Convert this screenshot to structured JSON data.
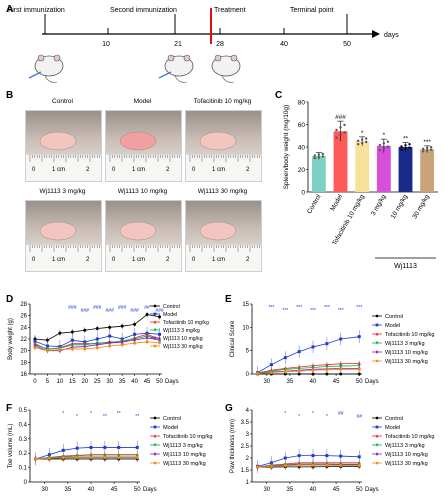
{
  "panel_letters": {
    "a": "A",
    "b": "B",
    "c": "C",
    "d": "D",
    "e": "E",
    "f": "F",
    "g": "G"
  },
  "timeline": {
    "labels": [
      "First immunization",
      "Second immunization",
      "Treatment",
      "Terminal point"
    ],
    "ticks": [
      "10",
      "21",
      "28",
      "40",
      "50"
    ],
    "unit": "days"
  },
  "photos": {
    "titles": [
      "Control",
      "Model",
      "Tofacitinib  10 mg/kg",
      "Wj1113  3 mg/kg",
      "Wj1113  10 mg/kg",
      "Wj1113  30 mg/kg"
    ],
    "ruler_text": [
      "0",
      "1 cm",
      "2"
    ]
  },
  "legend_labels": [
    "Control",
    "Model",
    "Tofacitinib 10 mg/kg",
    "Wj1113 3 mg/kg",
    "Wj1113 10 mg/kg",
    "Wj1113 30 mg/kg"
  ],
  "legend_labels_d": [
    "Control",
    "Model",
    "Tofacitinib 10 mg/kg",
    "Wj1113 3 mg/kg",
    "Wj1113 10 mg/kg",
    "Wj1113 30 mg/kg"
  ],
  "colors": {
    "Control": "#000000",
    "Model": "#1f3bd4",
    "Tofacitinib": "#e8232b",
    "Wj1113_3": "#13a843",
    "Wj1113_10": "#8a1fb8",
    "Wj1113_30": "#f08a1a"
  },
  "chart_data": [
    {
      "id": "C",
      "type": "bar",
      "ylabel": "Spleen/body weight (mg/10g)",
      "categories": [
        "Control",
        "Model",
        "Tofacitinib 10 mg/kg",
        "3 mg/kg",
        "10 mg/kg",
        "30 mg/kg"
      ],
      "group_label": "Wj1113",
      "values": [
        32,
        54,
        45,
        41,
        40,
        38
      ],
      "errors": [
        3,
        9,
        4,
        6,
        4,
        3
      ],
      "significance": [
        "",
        "###",
        "*",
        "*",
        "**",
        "***"
      ],
      "bar_colors": [
        "#7ed1c2",
        "#ff5a5a",
        "#f7e19b",
        "#d84ed8",
        "#1a2a8a",
        "#c9a37a"
      ],
      "yticks": [
        0,
        20,
        40,
        60,
        80
      ],
      "ylim": [
        0,
        80
      ]
    },
    {
      "id": "D",
      "type": "line",
      "ylabel": "Body weight (g)",
      "xlabel": "Days",
      "x": [
        0,
        5,
        10,
        15,
        20,
        25,
        30,
        35,
        40,
        45,
        50
      ],
      "xticks": [
        0,
        5,
        10,
        15,
        20,
        25,
        30,
        35,
        40,
        45,
        50
      ],
      "yticks": [
        16,
        18,
        20,
        22,
        24,
        26,
        28
      ],
      "ylim": [
        16,
        28
      ],
      "series": [
        {
          "name": "Control",
          "values": [
            22.0,
            21.8,
            23.0,
            23.2,
            23.5,
            23.8,
            24.0,
            24.2,
            24.5,
            26.2,
            25.8
          ]
        },
        {
          "name": "Model",
          "values": [
            21.6,
            20.8,
            20.7,
            21.8,
            21.5,
            22.0,
            22.5,
            22.0,
            22.8,
            23.0,
            22.8
          ]
        },
        {
          "name": "Tofacitinib 10 mg/kg",
          "values": [
            21.2,
            20.2,
            20.5,
            21.2,
            21.2,
            21.2,
            21.5,
            21.4,
            22.2,
            22.8,
            22.0
          ]
        },
        {
          "name": "Wj1113 3 mg/kg",
          "values": [
            21.0,
            20.3,
            20.4,
            21.0,
            21.0,
            21.3,
            21.4,
            21.7,
            22.0,
            22.5,
            22.0
          ]
        },
        {
          "name": "Wj1113 10 mg/kg",
          "values": [
            20.8,
            20.0,
            20.0,
            20.6,
            20.7,
            21.0,
            21.3,
            21.5,
            21.8,
            22.2,
            21.8
          ]
        },
        {
          "name": "Wj1113 30 mg/kg",
          "values": [
            20.5,
            20.0,
            20.2,
            20.3,
            20.3,
            20.5,
            20.8,
            21.0,
            21.3,
            21.5,
            21.4
          ]
        }
      ],
      "annotations": [
        "###",
        "###",
        "###",
        "###",
        "###",
        "###",
        "##",
        "###"
      ]
    },
    {
      "id": "E",
      "type": "line",
      "ylabel": "Clinical Score",
      "xlabel": "Days",
      "x": [
        28,
        31,
        34,
        37,
        40,
        43,
        46,
        50
      ],
      "xticks": [
        30,
        35,
        40,
        45,
        50
      ],
      "yticks": [
        0,
        5,
        10,
        15
      ],
      "ylim": [
        0,
        15
      ],
      "series": [
        {
          "name": "Control",
          "values": [
            0,
            0,
            0,
            0,
            0,
            0,
            0,
            0
          ]
        },
        {
          "name": "Model",
          "values": [
            0.3,
            2.0,
            3.5,
            4.8,
            5.8,
            6.5,
            7.5,
            8.0
          ]
        },
        {
          "name": "Tofacitinib 10 mg/kg",
          "values": [
            0.2,
            0.8,
            1.2,
            1.5,
            1.8,
            2.0,
            2.2,
            2.3
          ]
        },
        {
          "name": "Wj1113 3 mg/kg",
          "values": [
            0.2,
            0.6,
            1.0,
            1.2,
            1.4,
            1.6,
            1.7,
            1.8
          ]
        },
        {
          "name": "Wj1113 10 mg/kg",
          "values": [
            0.1,
            0.4,
            0.6,
            0.8,
            1.0,
            1.1,
            1.2,
            1.2
          ]
        },
        {
          "name": "Wj1113 30 mg/kg",
          "values": [
            0.1,
            0.3,
            0.5,
            0.6,
            0.8,
            0.9,
            1.0,
            1.0
          ]
        }
      ],
      "annotations": [
        "***",
        "***",
        "***",
        "***",
        "***",
        "***",
        "***"
      ]
    },
    {
      "id": "F",
      "type": "line",
      "ylabel": "Toe volume (mL)",
      "xlabel": "Days",
      "x": [
        28,
        31,
        34,
        37,
        40,
        43,
        46,
        50
      ],
      "xticks": [
        30,
        35,
        40,
        45,
        50
      ],
      "yticks": [
        0.0,
        0.1,
        0.2,
        0.3,
        0.4,
        0.5
      ],
      "ylim": [
        0.0,
        0.5
      ],
      "series": [
        {
          "name": "Control",
          "values": [
            0.16,
            0.16,
            0.16,
            0.16,
            0.16,
            0.16,
            0.16,
            0.16
          ]
        },
        {
          "name": "Model",
          "values": [
            0.16,
            0.19,
            0.22,
            0.235,
            0.24,
            0.24,
            0.24,
            0.24
          ]
        },
        {
          "name": "Tofacitinib 10 mg/kg",
          "values": [
            0.16,
            0.17,
            0.18,
            0.185,
            0.19,
            0.19,
            0.19,
            0.19
          ]
        },
        {
          "name": "Wj1113 3 mg/kg",
          "values": [
            0.16,
            0.17,
            0.175,
            0.18,
            0.18,
            0.18,
            0.18,
            0.18
          ]
        },
        {
          "name": "Wj1113 10 mg/kg",
          "values": [
            0.16,
            0.165,
            0.17,
            0.17,
            0.17,
            0.17,
            0.17,
            0.17
          ]
        },
        {
          "name": "Wj1113 30 mg/kg",
          "values": [
            0.16,
            0.165,
            0.168,
            0.17,
            0.17,
            0.17,
            0.17,
            0.17
          ]
        }
      ],
      "annotations": [
        "*",
        "*",
        "*",
        "**",
        "**",
        "**"
      ]
    },
    {
      "id": "G",
      "type": "line",
      "ylabel": "Paw thickness (mm)",
      "xlabel": "Days",
      "x": [
        28,
        31,
        34,
        37,
        40,
        43,
        46,
        50
      ],
      "xticks": [
        30,
        35,
        40,
        45,
        50
      ],
      "yticks": [
        1.0,
        1.5,
        2.0,
        2.5,
        3.0,
        3.5,
        4.0
      ],
      "ylim": [
        1.0,
        4.0
      ],
      "series": [
        {
          "name": "Control",
          "values": [
            1.62,
            1.62,
            1.63,
            1.63,
            1.63,
            1.64,
            1.64,
            1.65
          ]
        },
        {
          "name": "Model",
          "values": [
            1.65,
            1.8,
            2.0,
            2.1,
            2.1,
            2.1,
            2.08,
            2.05
          ]
        },
        {
          "name": "Tofacitinib 10 mg/kg",
          "values": [
            1.63,
            1.7,
            1.75,
            1.8,
            1.8,
            1.8,
            1.8,
            1.8
          ]
        },
        {
          "name": "Wj1113 3 mg/kg",
          "values": [
            1.62,
            1.68,
            1.72,
            1.75,
            1.75,
            1.75,
            1.74,
            1.74
          ]
        },
        {
          "name": "Wj1113 10 mg/kg",
          "values": [
            1.62,
            1.66,
            1.7,
            1.72,
            1.72,
            1.72,
            1.71,
            1.71
          ]
        },
        {
          "name": "Wj1113 30 mg/kg",
          "values": [
            1.62,
            1.65,
            1.68,
            1.7,
            1.7,
            1.7,
            1.69,
            1.69
          ]
        }
      ],
      "annotations": [
        "*",
        "*",
        "*",
        "*",
        "##",
        "##"
      ]
    }
  ]
}
